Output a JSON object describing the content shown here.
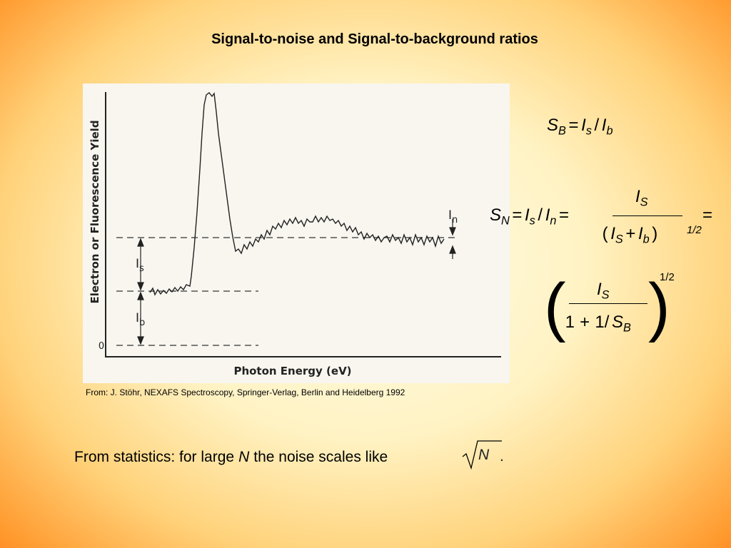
{
  "title": "Signal-to-noise and Signal-to-background ratios",
  "figure": {
    "y_axis_label": "Electron or Fluorescence Yield",
    "x_axis_label": "Photon Energy (eV)",
    "zero_label": "0",
    "markers": [
      {
        "main": "I",
        "sub": "s"
      },
      {
        "main": "I",
        "sub": "b"
      },
      {
        "main": "I",
        "sub": "n"
      }
    ]
  },
  "caption": "From: J. Stöhr, NEXAFS Spectroscopy, Springer-Verlag, Berlin and Heidelberg 1992",
  "eq_sb": [
    {
      "t": "S",
      "s": "i"
    },
    {
      "t": "B",
      "s": "sub"
    },
    {
      "t": "=",
      "s": "n"
    },
    {
      "t": "I",
      "s": "i"
    },
    {
      "t": "s",
      "s": "sub"
    },
    {
      "t": "/",
      "s": "n"
    },
    {
      "t": "I",
      "s": "i"
    },
    {
      "t": "b",
      "s": "sub"
    }
  ],
  "eq_sn": {
    "left": [
      {
        "t": "S",
        "s": "i"
      },
      {
        "t": "N",
        "s": "sub"
      },
      {
        "t": "=",
        "s": "n"
      },
      {
        "t": "I",
        "s": "i"
      },
      {
        "t": "s",
        "s": "sub"
      },
      {
        "t": "/",
        "s": "n"
      },
      {
        "t": "I",
        "s": "i"
      },
      {
        "t": "n",
        "s": "sub"
      },
      {
        "t": "=",
        "s": "n"
      }
    ],
    "numerator": [
      {
        "t": "I",
        "s": "i"
      },
      {
        "t": "S",
        "s": "sub"
      }
    ],
    "denominator": [
      {
        "t": "(",
        "s": "n"
      },
      {
        "t": "I",
        "s": "i"
      },
      {
        "t": "S",
        "s": "sub"
      },
      {
        "t": "+",
        "s": "n"
      },
      {
        "t": "I",
        "s": "i"
      },
      {
        "t": "b",
        "s": "sub"
      },
      {
        "t": ")",
        "s": "n"
      }
    ],
    "exponent": "1/2",
    "tail": "="
  },
  "eq_sb_form": {
    "open": "(",
    "close": ")",
    "numerator": [
      {
        "t": "I",
        "s": "i"
      },
      {
        "t": "S",
        "s": "sub"
      }
    ],
    "denominator": [
      {
        "t": "1",
        "s": "n"
      },
      {
        "t": "+",
        "s": "n"
      },
      {
        "t": "1/",
        "s": "n"
      },
      {
        "t": "S",
        "s": "i"
      },
      {
        "t": "B",
        "s": "sub"
      }
    ],
    "exponent": "1/2"
  },
  "footer": {
    "before": "From statistics: for large",
    "variable": "N",
    "after": "the noise scales like",
    "root": "N",
    "end": "."
  }
}
